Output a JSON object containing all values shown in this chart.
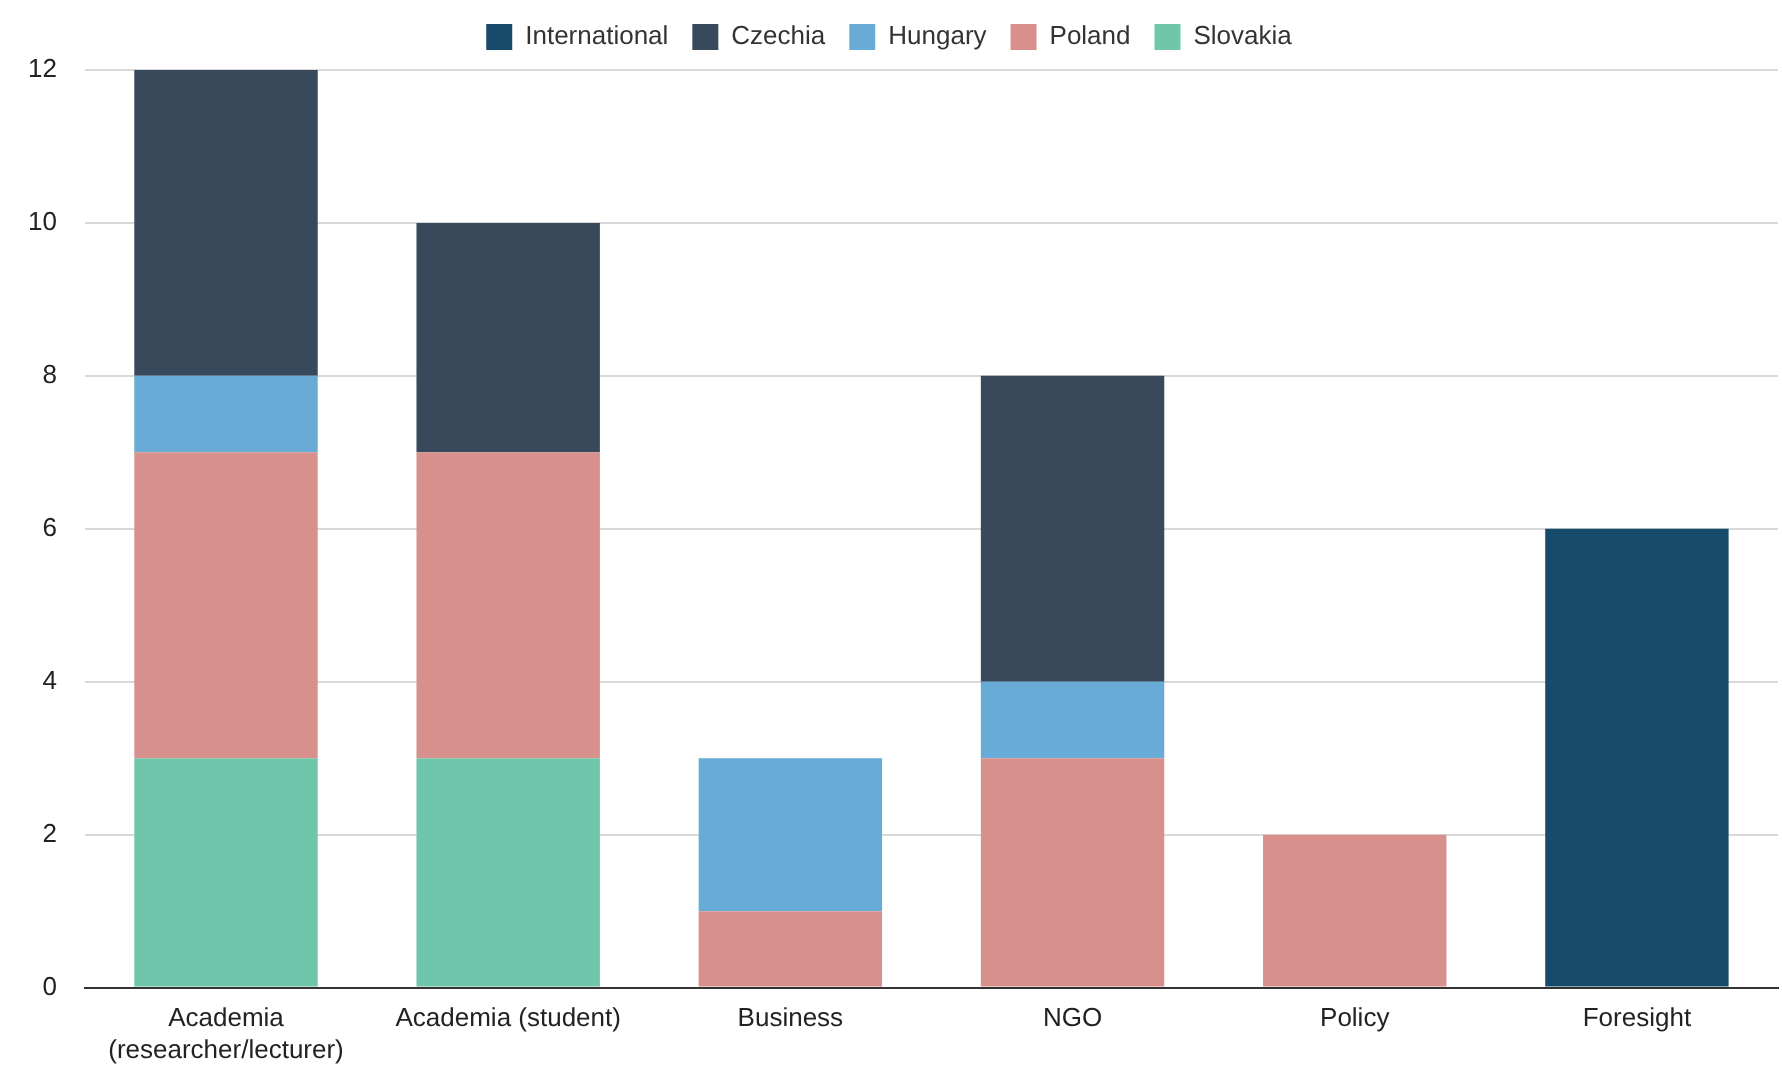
{
  "chart_data": {
    "type": "bar",
    "stacked": true,
    "categories": [
      "Academia (researcher/lecturer)",
      "Academia (student)",
      "Business",
      "NGO",
      "Policy",
      "Foresight"
    ],
    "series": [
      {
        "name": "Slovakia",
        "color": "#6fc6aa",
        "values": [
          3,
          3,
          null,
          null,
          null,
          null
        ]
      },
      {
        "name": "Poland",
        "color": "#d8908d",
        "values": [
          4,
          4,
          1,
          3,
          2,
          null
        ]
      },
      {
        "name": "Hungary",
        "color": "#67abd6",
        "values": [
          1,
          null,
          2,
          1,
          null,
          null
        ]
      },
      {
        "name": "Czechia",
        "color": "#37495a",
        "values": [
          4,
          3,
          null,
          4,
          null,
          null
        ]
      },
      {
        "name": "International",
        "color": "#184b6b",
        "values": [
          null,
          null,
          null,
          null,
          null,
          6
        ]
      }
    ],
    "ylim": [
      0,
      12
    ],
    "yticks": [
      0,
      2,
      4,
      6,
      8,
      10,
      12
    ],
    "grid": "y",
    "legend": "top"
  }
}
